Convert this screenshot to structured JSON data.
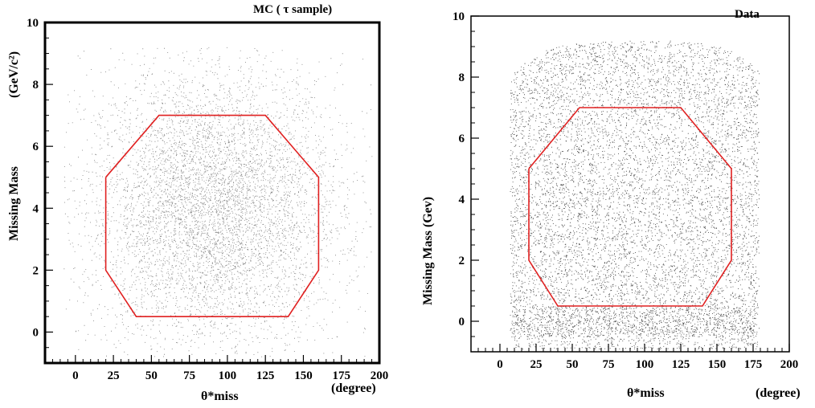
{
  "chart_data": [
    {
      "type": "scatter",
      "title": "MC   ( τ sample)",
      "xlabel": "θ*miss",
      "xunit": "(degree)",
      "ylabel": "Missing Mass",
      "yunit": "(GeV/c²)",
      "xlim": [
        -20,
        200
      ],
      "ylim": [
        -1,
        10
      ],
      "xticks": [
        "0",
        "25",
        "50",
        "75",
        "100",
        "125",
        "150",
        "175",
        "200"
      ],
      "yticks": [
        "0",
        "2",
        "4",
        "6",
        "8",
        "10"
      ],
      "region": {
        "color": "#e02020",
        "x": [
          20,
          55,
          125,
          160,
          160,
          140,
          40,
          20,
          20
        ],
        "y": [
          5,
          7,
          7,
          5,
          2,
          0.5,
          0.5,
          2,
          5
        ]
      },
      "point_color": "#808080"
    },
    {
      "type": "scatter",
      "title": "Data",
      "xlabel": "θ*miss",
      "xunit": "(degree)",
      "ylabel": "Missing Mass (Gev)",
      "yunit": "",
      "xlim": [
        -20,
        200
      ],
      "ylim": [
        -1,
        10
      ],
      "xticks": [
        "0",
        "25",
        "50",
        "75",
        "100",
        "125",
        "150",
        "175",
        "200"
      ],
      "yticks": [
        "0",
        "2",
        "4",
        "6",
        "8",
        "10"
      ],
      "region": {
        "color": "#e02020",
        "x": [
          20,
          55,
          125,
          160,
          160,
          140,
          40,
          20,
          20
        ],
        "y": [
          5,
          7,
          7,
          5,
          2,
          0.5,
          0.5,
          2,
          5
        ]
      },
      "point_color": "#404040"
    }
  ]
}
